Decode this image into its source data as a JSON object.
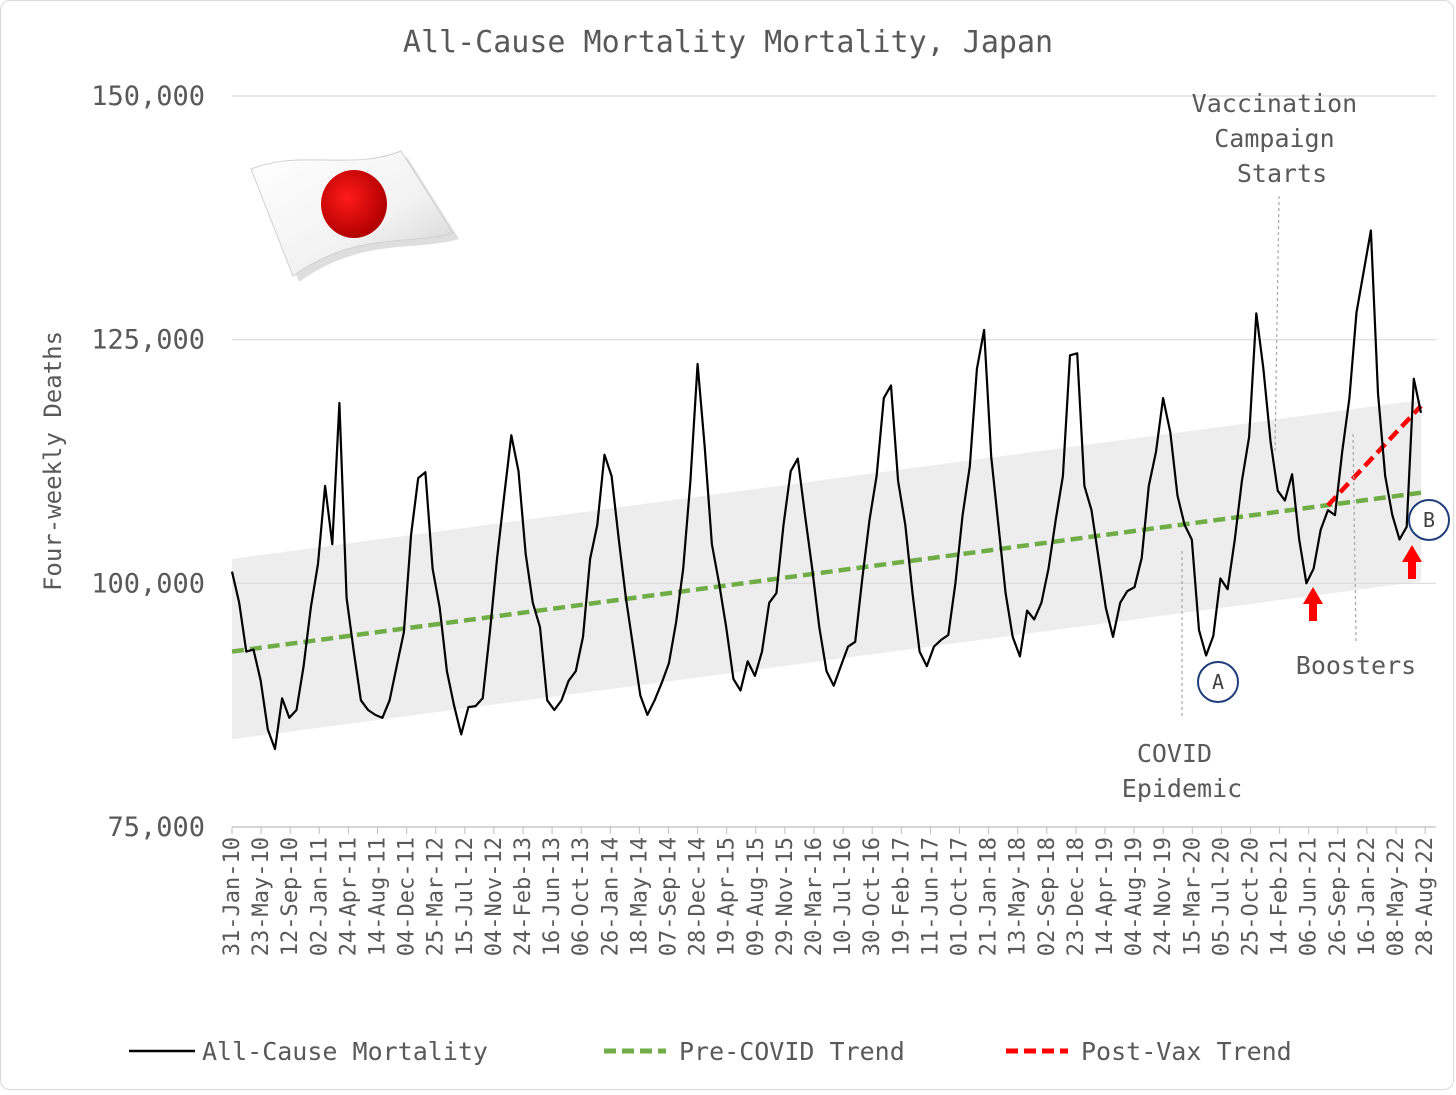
{
  "chart_data": {
    "type": "line",
    "title": "All-Cause Mortality Mortality, Japan",
    "ylabel": "Four-weekly Deaths",
    "xlabel": "",
    "ylim": [
      75000,
      150000
    ],
    "yticks": [
      "75,000",
      "100,000",
      "125,000",
      "150,000"
    ],
    "ytick_values": [
      75000,
      100000,
      125000,
      150000
    ],
    "grid": "horizontal",
    "legend_position": "bottom",
    "x_tick_labels": [
      "31-Jan-10",
      "23-May-10",
      "12-Sep-10",
      "02-Jan-11",
      "24-Apr-11",
      "14-Aug-11",
      "04-Dec-11",
      "25-Mar-12",
      "15-Jul-12",
      "04-Nov-12",
      "24-Feb-13",
      "16-Jun-13",
      "06-Oct-13",
      "26-Jan-14",
      "18-May-14",
      "07-Sep-14",
      "28-Dec-14",
      "19-Apr-15",
      "09-Aug-15",
      "29-Nov-15",
      "20-Mar-16",
      "10-Jul-16",
      "30-Oct-16",
      "19-Feb-17",
      "11-Jun-17",
      "01-Oct-17",
      "21-Jan-18",
      "13-May-18",
      "02-Sep-18",
      "23-Dec-18",
      "14-Apr-19",
      "04-Aug-19",
      "24-Nov-19",
      "15-Mar-20",
      "05-Jul-20",
      "25-Oct-20",
      "14-Feb-21",
      "06-Jun-21",
      "26-Sep-21",
      "16-Jan-22",
      "08-May-22",
      "28-Aug-22"
    ],
    "series": [
      {
        "name": "All-Cause Mortality",
        "color": "#000000",
        "values": [
          101200,
          98000,
          93000,
          93200,
          90000,
          85000,
          83000,
          88200,
          86200,
          87000,
          91500,
          97500,
          102000,
          110000,
          104000,
          118500,
          98500,
          93000,
          88000,
          87000,
          86500,
          86200,
          88000,
          91500,
          95000,
          105000,
          110800,
          111400,
          101500,
          97500,
          91000,
          87500,
          84500,
          87300,
          87400,
          88200,
          95000,
          102500,
          109000,
          115200,
          111500,
          103000,
          98000,
          95500,
          88000,
          87000,
          88000,
          90000,
          91000,
          94500,
          102500,
          106000,
          113200,
          111000,
          104500,
          98500,
          93500,
          88500,
          86500,
          88000,
          89800,
          91800,
          96000,
          101500,
          110500,
          122500,
          114000,
          104000,
          100000,
          95500,
          90200,
          89000,
          92000,
          90500,
          93000,
          98000,
          99000,
          106000,
          111500,
          112800,
          107000,
          101500,
          95500,
          91000,
          89500,
          91500,
          93500,
          94000,
          100500,
          106500,
          111000,
          119000,
          120300,
          110500,
          106000,
          99000,
          93000,
          91500,
          93500,
          94200,
          94700,
          100000,
          107000,
          112000,
          122000,
          126000,
          113000,
          106000,
          99000,
          94500,
          92500,
          97200,
          96300,
          98000,
          101500,
          106500,
          111000,
          123400,
          123600,
          110000,
          107500,
          102500,
          97500,
          94500,
          98000,
          99200,
          99600,
          102600,
          110000,
          113500,
          119000,
          115500,
          109000,
          106000,
          104500,
          95200,
          92600,
          94600,
          100500,
          99400,
          104500,
          110500,
          115000,
          127700,
          122000,
          114500,
          109500,
          108500,
          111200,
          104500,
          100000,
          101500,
          105500,
          107500,
          107000,
          113500,
          119000,
          127800,
          132000,
          136200,
          119500,
          111000,
          107000,
          104500,
          105800,
          121000,
          117500
        ]
      },
      {
        "name": "Pre-COVID Trend",
        "color": "#70AD47",
        "start": 93000,
        "end": 109300
      },
      {
        "name": "Post-Vax Trend",
        "color": "#FF0000",
        "start_index": 153,
        "start": 108000,
        "end": 118200
      }
    ],
    "band": {
      "lower_start": 84000,
      "lower_end": 100200,
      "upper_start": 102500,
      "upper_end": 118800,
      "color": "#ededed"
    },
    "annotations": [
      {
        "lines": [
          "Vaccination",
          "Campaign",
          "Starts"
        ]
      },
      {
        "lines": [
          "COVID",
          "Epidemic"
        ]
      },
      {
        "lines": [
          "Boosters"
        ]
      },
      {
        "marker": "A"
      },
      {
        "marker": "B"
      }
    ]
  }
}
